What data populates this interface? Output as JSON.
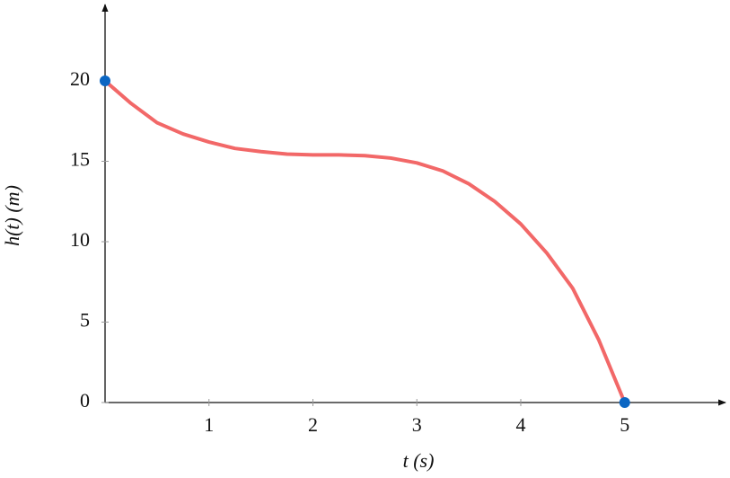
{
  "chart_data": {
    "type": "line",
    "x_label": "t (s)",
    "y_label": "h(t) (m)",
    "xlim": [
      0,
      5.97
    ],
    "ylim": [
      0,
      24.75
    ],
    "xticks": [
      1,
      2,
      3,
      4,
      5
    ],
    "yticks": [
      0,
      5,
      10,
      15,
      20
    ],
    "grid": false,
    "series": [
      {
        "color": "#f26868",
        "x": [
          0,
          0.25,
          0.5,
          0.75,
          1,
          1.25,
          1.5,
          1.75,
          2,
          2.25,
          2.5,
          2.75,
          3,
          3.25,
          3.5,
          3.75,
          4,
          4.25,
          4.5,
          4.75,
          5
        ],
        "values": [
          20,
          18.6,
          17.4,
          16.7,
          16.2,
          15.8,
          15.6,
          15.45,
          15.4,
          15.4,
          15.35,
          15.2,
          14.9,
          14.4,
          13.6,
          12.5,
          11.1,
          9.3,
          7.1,
          3.9,
          0
        ]
      }
    ],
    "points": {
      "color": "#0b66c3",
      "x": [
        0,
        5
      ],
      "values": [
        20,
        0
      ]
    }
  }
}
